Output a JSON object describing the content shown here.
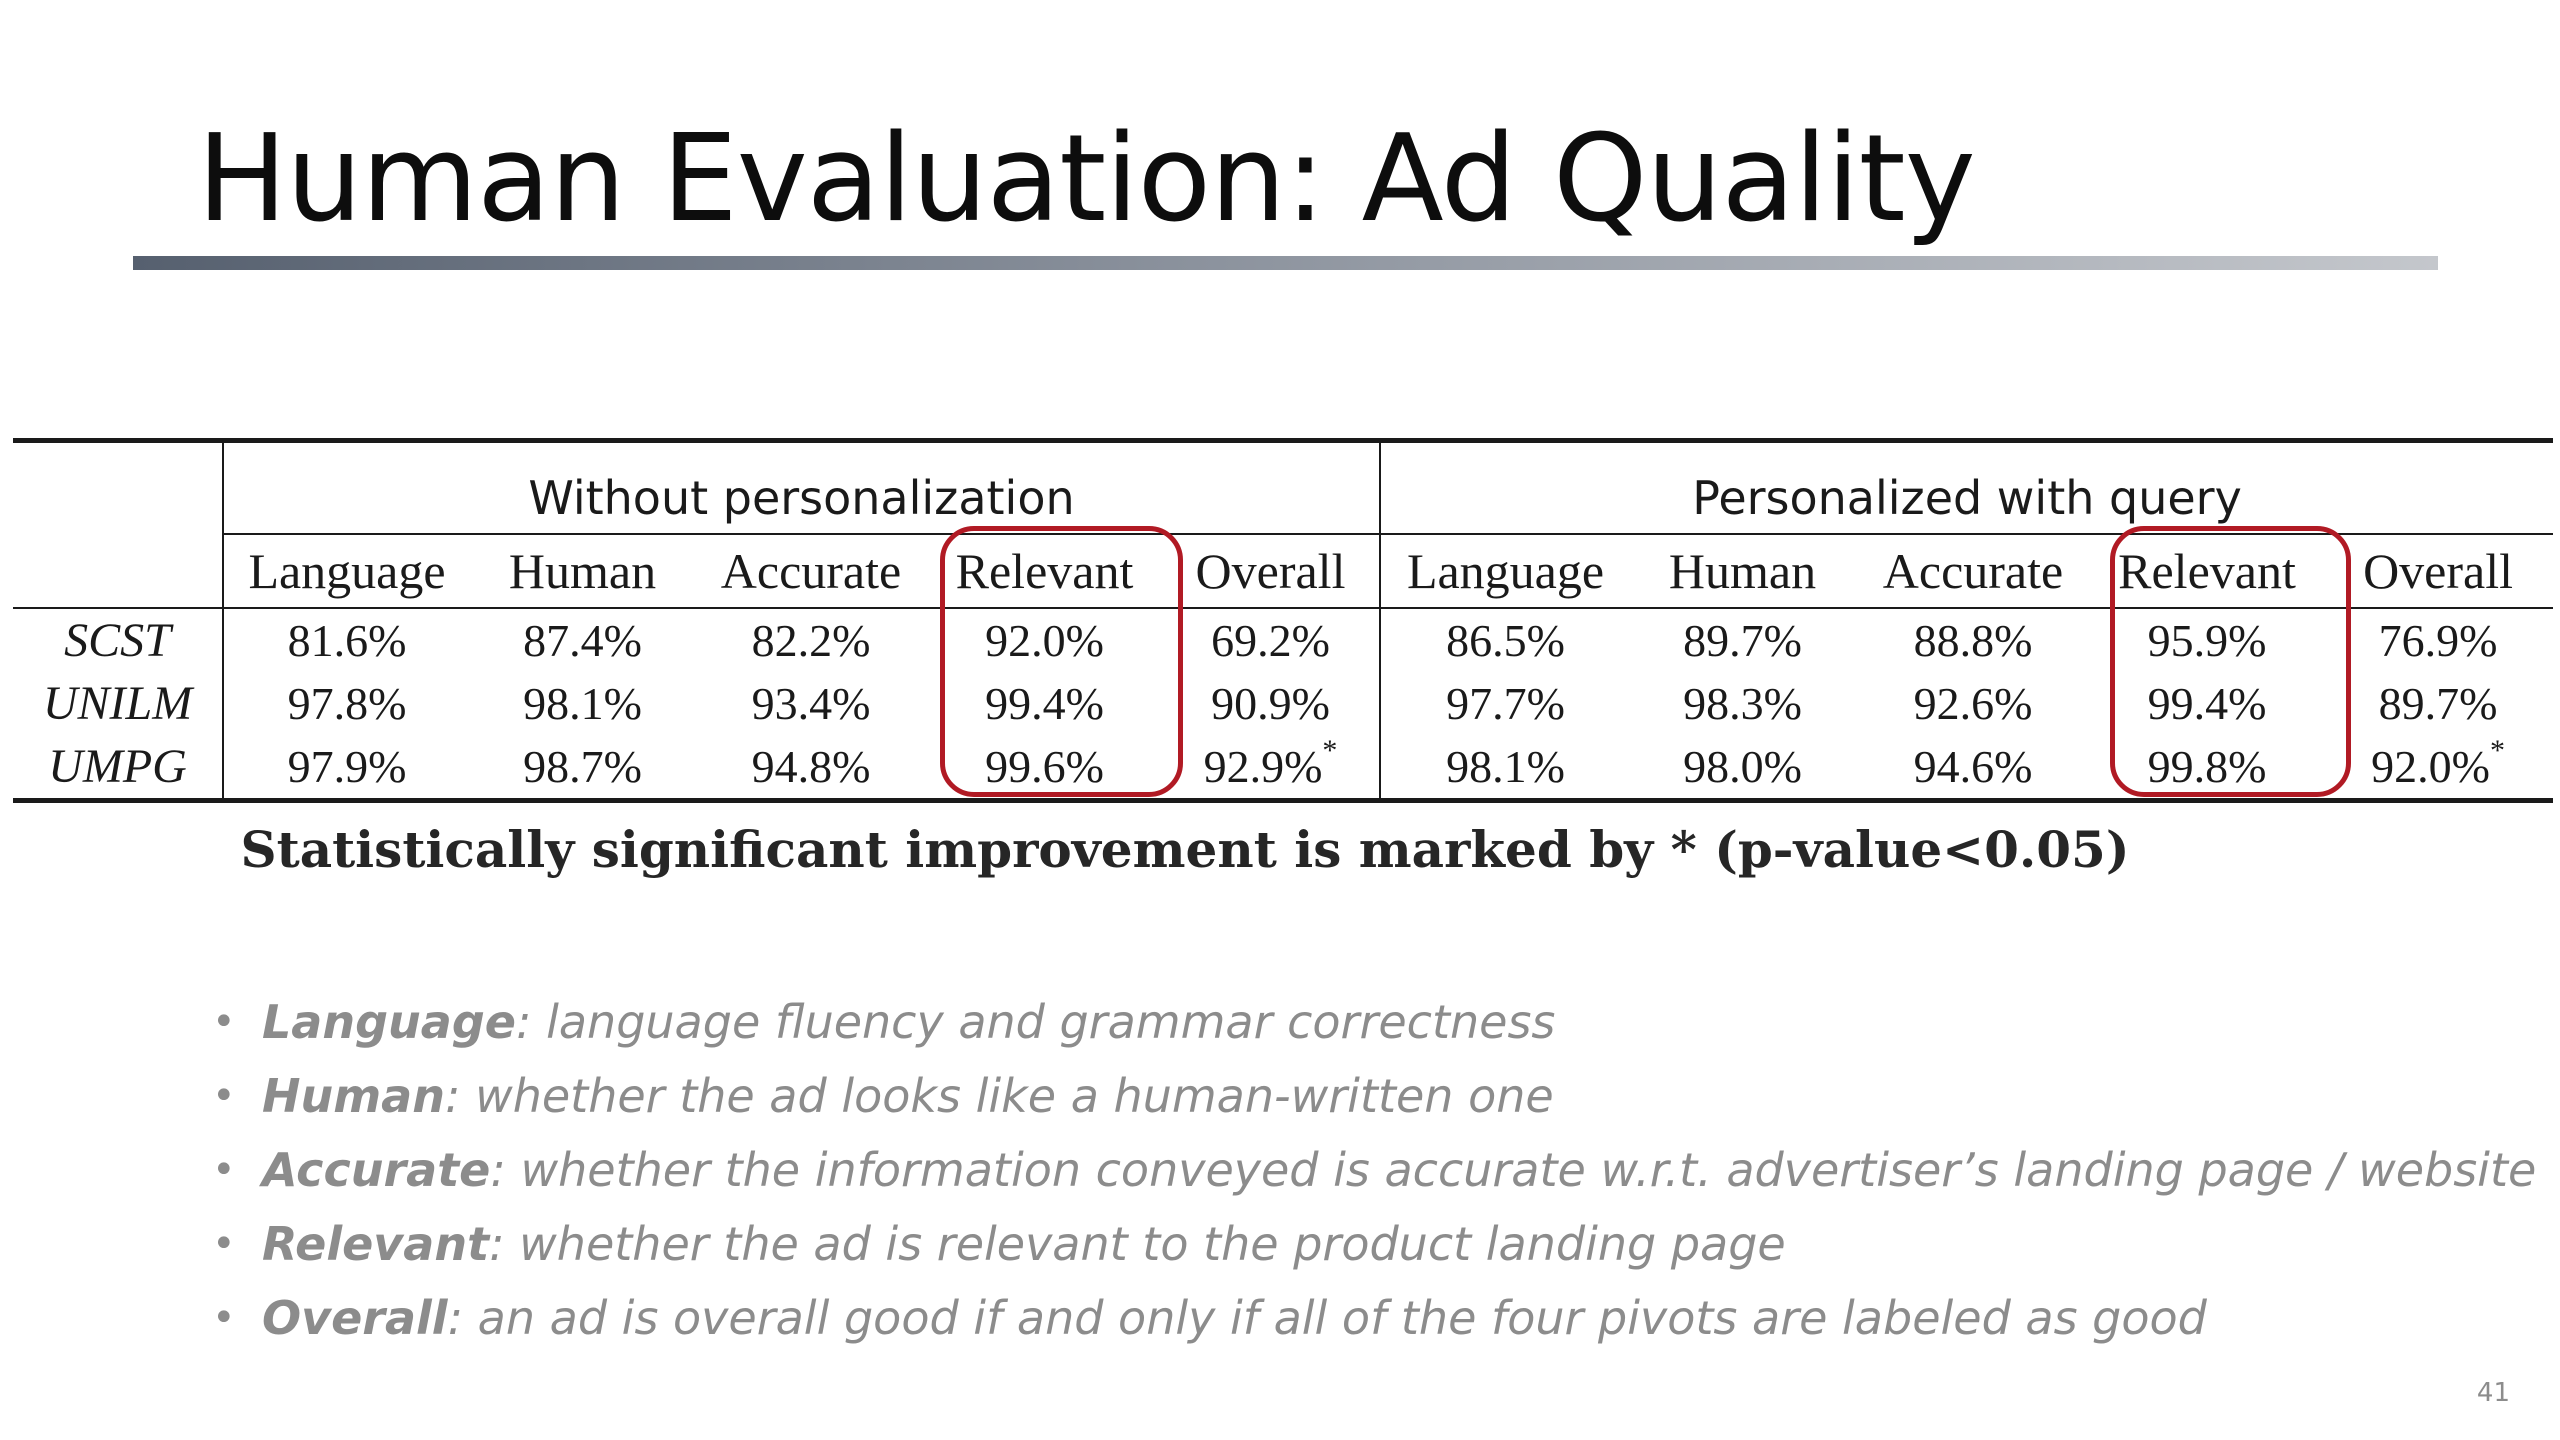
{
  "slide": {
    "title": "Human Evaluation: Ad Quality",
    "page_number": "41"
  },
  "table": {
    "groups": [
      "Without personalization",
      "Personalized with query"
    ],
    "columns": [
      "Language",
      "Human",
      "Accurate",
      "Relevant",
      "Overall",
      "Language",
      "Human",
      "Accurate",
      "Relevant",
      "Overall"
    ],
    "rows": [
      {
        "model": "SCST",
        "values": [
          "81.6%",
          "87.4%",
          "82.2%",
          "92.0%",
          "69.2%",
          "86.5%",
          "89.7%",
          "88.8%",
          "95.9%",
          "76.9%"
        ]
      },
      {
        "model": "UNILM",
        "values": [
          "97.8%",
          "98.1%",
          "93.4%",
          "99.4%",
          "90.9%",
          "97.7%",
          "98.3%",
          "92.6%",
          "99.4%",
          "89.7%"
        ]
      },
      {
        "model": "UMPG",
        "values": [
          "97.9%",
          "98.7%",
          "94.8%",
          "99.6%",
          "92.9%",
          "98.1%",
          "98.0%",
          "94.6%",
          "99.8%",
          "92.0%"
        ],
        "sup": [
          "",
          "",
          "",
          "",
          "*",
          "",
          "",
          "",
          "",
          "*"
        ]
      }
    ],
    "highlight_color": "#b11a24"
  },
  "note": "Statistically significant improvement is marked by * (p-value<0.05)",
  "bullets": [
    {
      "term": "Language",
      "desc": ": language fluency and grammar correctness"
    },
    {
      "term": "Human",
      "desc": ": whether the ad looks like a human-written one"
    },
    {
      "term": "Accurate",
      "desc": ": whether the information conveyed is accurate w.r.t. advertiser’s landing page / website"
    },
    {
      "term": "Relevant",
      "desc": ": whether the ad is relevant to the product landing page"
    },
    {
      "term": "Overall",
      "desc": ": an ad is overall good if and only if all of the four pivots are labeled as good"
    }
  ],
  "bullet_glyph": "•"
}
